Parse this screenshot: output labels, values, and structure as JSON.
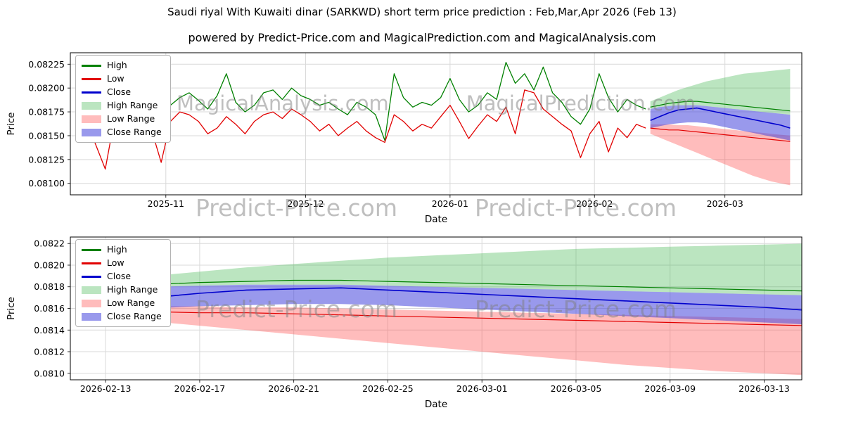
{
  "page": {
    "title": "Saudi riyal With Kuwaiti dinar (SARKWD) short term price prediction : Feb,Mar,Apr 2026 (Feb 13)",
    "subtitle": "powered by Predict-Price.com and MagicalPrediction.com and MagicalAnalysis.com"
  },
  "watermarks": {
    "top_inner": [
      "MagicalAnalysis.com",
      "MagicalPrediction.com"
    ],
    "top_axis": [
      "Predict-Price.com",
      "Predict-Price.com"
    ],
    "bottom_inner": [
      "Predict-Price.com",
      "Predict-Price.com"
    ]
  },
  "legend": {
    "items": [
      "High",
      "Low",
      "Close",
      "High Range",
      "Low Range",
      "Close Range"
    ]
  },
  "colors": {
    "high": "#008000",
    "low": "#e10000",
    "close": "#0000cd",
    "high_range": "rgba(60,180,75,0.35)",
    "low_range": "rgba(255,80,80,0.38)",
    "close_range": "rgba(70,70,220,0.55)",
    "grid": "#d9d9d9",
    "axis": "#000000",
    "watermark": "#808080"
  },
  "chart_data": [
    {
      "name": "history-with-forecast",
      "type": "line",
      "xlabel": "Date",
      "ylabel": "Price",
      "legend_position": "upper left",
      "grid": true,
      "ylim": [
        0.08088,
        0.08237
      ],
      "yticks": [
        {
          "v": 0.081,
          "label": "0.08100"
        },
        {
          "v": 0.08125,
          "label": "0.08125"
        },
        {
          "v": 0.0815,
          "label": "0.08150"
        },
        {
          "v": 0.08175,
          "label": "0.08175"
        },
        {
          "v": 0.082,
          "label": "0.08200"
        },
        {
          "v": 0.08225,
          "label": "0.08225"
        }
      ],
      "xlim_days": [
        -1.5,
        155.5
      ],
      "xticks": [
        {
          "day": 19,
          "label": "2025-11"
        },
        {
          "day": 49,
          "label": "2025-12"
        },
        {
          "day": 80,
          "label": "2026-01"
        },
        {
          "day": 111,
          "label": "2026-02"
        },
        {
          "day": 139,
          "label": "2026-03"
        }
      ],
      "historical": {
        "start_day": 0,
        "step": 2,
        "high": [
          0.0819,
          0.08185,
          0.08178,
          0.0817,
          0.08188,
          0.08195,
          0.08192,
          0.08185,
          0.0818,
          0.08175,
          0.08182,
          0.0819,
          0.08195,
          0.08187,
          0.08178,
          0.08192,
          0.08215,
          0.08185,
          0.08175,
          0.08182,
          0.08195,
          0.08198,
          0.08188,
          0.082,
          0.08192,
          0.08188,
          0.08182,
          0.08185,
          0.08178,
          0.08172,
          0.08185,
          0.0818,
          0.08172,
          0.08145,
          0.08215,
          0.0819,
          0.0818,
          0.08185,
          0.08182,
          0.0819,
          0.0821,
          0.08188,
          0.08175,
          0.08182,
          0.08195,
          0.08188,
          0.08227,
          0.08205,
          0.08215,
          0.08198,
          0.08222,
          0.08195,
          0.08185,
          0.0817,
          0.08162,
          0.08178,
          0.08215,
          0.0819,
          0.08175,
          0.08188,
          0.08182,
          0.08178
        ],
        "low": [
          0.08172,
          0.08165,
          0.0814,
          0.08115,
          0.08168,
          0.08175,
          0.0817,
          0.08162,
          0.08155,
          0.08122,
          0.08165,
          0.08175,
          0.08172,
          0.08165,
          0.08152,
          0.08158,
          0.0817,
          0.08162,
          0.08152,
          0.08165,
          0.08172,
          0.08175,
          0.08168,
          0.08178,
          0.08172,
          0.08165,
          0.08155,
          0.08162,
          0.0815,
          0.08158,
          0.08165,
          0.08155,
          0.08148,
          0.08143,
          0.08172,
          0.08165,
          0.08155,
          0.08162,
          0.08158,
          0.0817,
          0.08182,
          0.08165,
          0.08147,
          0.0816,
          0.08172,
          0.08165,
          0.0818,
          0.08152,
          0.08198,
          0.08195,
          0.08178,
          0.0817,
          0.08162,
          0.08155,
          0.08127,
          0.08152,
          0.08165,
          0.08133,
          0.08158,
          0.08148,
          0.08162,
          0.08158
        ]
      },
      "forecast": {
        "start_day": 123,
        "step": 2,
        "high": [
          0.0818,
          0.08182,
          0.08184,
          0.08185,
          0.08186,
          0.08186,
          0.08185,
          0.08184,
          0.08183,
          0.08182,
          0.08181,
          0.0818,
          0.08179,
          0.08178,
          0.08177,
          0.08176
        ],
        "low": [
          0.08158,
          0.08157,
          0.08156,
          0.08156,
          0.08155,
          0.08154,
          0.08153,
          0.08152,
          0.08151,
          0.0815,
          0.08149,
          0.08148,
          0.08147,
          0.08146,
          0.08145,
          0.08144
        ],
        "close": [
          0.08166,
          0.0817,
          0.08174,
          0.08177,
          0.08178,
          0.08179,
          0.08177,
          0.08175,
          0.08173,
          0.08171,
          0.08169,
          0.08167,
          0.08165,
          0.08163,
          0.08161,
          0.08158
        ],
        "high_range": {
          "upper": [
            0.08186,
            0.0819,
            0.08194,
            0.08198,
            0.08201,
            0.08204,
            0.08207,
            0.08209,
            0.08211,
            0.08213,
            0.08215,
            0.08216,
            0.08217,
            0.08218,
            0.08219,
            0.0822
          ],
          "lower": [
            0.08178,
            0.0818,
            0.08181,
            0.08182,
            0.08182,
            0.08182,
            0.08181,
            0.0818,
            0.08179,
            0.08178,
            0.08177,
            0.08176,
            0.08175,
            0.08174,
            0.08173,
            0.08172
          ]
        },
        "low_range": {
          "upper": [
            0.08162,
            0.08162,
            0.08162,
            0.08161,
            0.08161,
            0.0816,
            0.08159,
            0.08158,
            0.08157,
            0.08156,
            0.08155,
            0.08154,
            0.08153,
            0.08152,
            0.08151,
            0.0815
          ],
          "lower": [
            0.08152,
            0.08148,
            0.08144,
            0.0814,
            0.08136,
            0.08132,
            0.08128,
            0.08124,
            0.0812,
            0.08116,
            0.08112,
            0.08108,
            0.08105,
            0.08102,
            0.081,
            0.08098
          ]
        },
        "close_range": {
          "upper": [
            0.08178,
            0.0818,
            0.08181,
            0.08182,
            0.08182,
            0.08182,
            0.08181,
            0.0818,
            0.08179,
            0.08178,
            0.08177,
            0.08176,
            0.08175,
            0.08174,
            0.08173,
            0.08172
          ],
          "lower": [
            0.08158,
            0.0816,
            0.08162,
            0.08163,
            0.08164,
            0.08164,
            0.08163,
            0.08161,
            0.08159,
            0.08157,
            0.08155,
            0.08153,
            0.08151,
            0.08149,
            0.08147,
            0.08145
          ]
        }
      }
    },
    {
      "name": "forecast-detail",
      "type": "line",
      "xlabel": "Date",
      "ylabel": "Price",
      "legend_position": "upper left",
      "grid": true,
      "ylim": [
        0.08094,
        0.08226
      ],
      "yticks": [
        {
          "v": 0.081,
          "label": "0.0810"
        },
        {
          "v": 0.0812,
          "label": "0.0812"
        },
        {
          "v": 0.0814,
          "label": "0.0814"
        },
        {
          "v": 0.0816,
          "label": "0.0816"
        },
        {
          "v": 0.0818,
          "label": "0.0818"
        },
        {
          "v": 0.082,
          "label": "0.0820"
        },
        {
          "v": 0.0822,
          "label": "0.0822"
        }
      ],
      "xlim_days": [
        -1.5,
        29.6
      ],
      "xticks": [
        {
          "day": 0,
          "label": "2026-02-13"
        },
        {
          "day": 4,
          "label": "2026-02-17"
        },
        {
          "day": 8,
          "label": "2026-02-21"
        },
        {
          "day": 12,
          "label": "2026-02-25"
        },
        {
          "day": 16,
          "label": "2026-03-01"
        },
        {
          "day": 20,
          "label": "2026-03-05"
        },
        {
          "day": 24,
          "label": "2026-03-09"
        },
        {
          "day": 28,
          "label": "2026-03-13"
        }
      ],
      "forecast": {
        "start_day": 0,
        "step": 2,
        "high": [
          0.0818,
          0.08182,
          0.08184,
          0.08185,
          0.08186,
          0.08186,
          0.08185,
          0.08184,
          0.08183,
          0.08182,
          0.08181,
          0.0818,
          0.08179,
          0.08178,
          0.08177,
          0.08176
        ],
        "low": [
          0.08158,
          0.08157,
          0.08156,
          0.08156,
          0.08155,
          0.08154,
          0.08153,
          0.08152,
          0.08151,
          0.0815,
          0.08149,
          0.08148,
          0.08147,
          0.08146,
          0.08145,
          0.08144
        ],
        "close": [
          0.08166,
          0.0817,
          0.08174,
          0.08177,
          0.08178,
          0.08179,
          0.08177,
          0.08175,
          0.08173,
          0.08171,
          0.08169,
          0.08167,
          0.08165,
          0.08163,
          0.08161,
          0.08158
        ],
        "high_range": {
          "upper": [
            0.08186,
            0.0819,
            0.08194,
            0.08198,
            0.08201,
            0.08204,
            0.08207,
            0.08209,
            0.08211,
            0.08213,
            0.08215,
            0.08216,
            0.08217,
            0.08218,
            0.08219,
            0.0822
          ],
          "lower": [
            0.08178,
            0.0818,
            0.08181,
            0.08182,
            0.08182,
            0.08182,
            0.08181,
            0.0818,
            0.08179,
            0.08178,
            0.08177,
            0.08176,
            0.08175,
            0.08174,
            0.08173,
            0.08172
          ]
        },
        "low_range": {
          "upper": [
            0.08162,
            0.08162,
            0.08162,
            0.08161,
            0.08161,
            0.0816,
            0.08159,
            0.08158,
            0.08157,
            0.08156,
            0.08155,
            0.08154,
            0.08153,
            0.08152,
            0.08151,
            0.0815
          ],
          "lower": [
            0.08152,
            0.08148,
            0.08144,
            0.0814,
            0.08136,
            0.08132,
            0.08128,
            0.08124,
            0.0812,
            0.08116,
            0.08112,
            0.08108,
            0.08105,
            0.08102,
            0.081,
            0.08098
          ]
        },
        "close_range": {
          "upper": [
            0.08178,
            0.0818,
            0.08181,
            0.08182,
            0.08182,
            0.08182,
            0.08181,
            0.0818,
            0.08179,
            0.08178,
            0.08177,
            0.08176,
            0.08175,
            0.08174,
            0.08173,
            0.08172
          ],
          "lower": [
            0.08158,
            0.0816,
            0.08162,
            0.08163,
            0.08164,
            0.08164,
            0.08163,
            0.08161,
            0.08159,
            0.08157,
            0.08155,
            0.08153,
            0.08151,
            0.08149,
            0.08147,
            0.08145
          ]
        }
      }
    }
  ]
}
